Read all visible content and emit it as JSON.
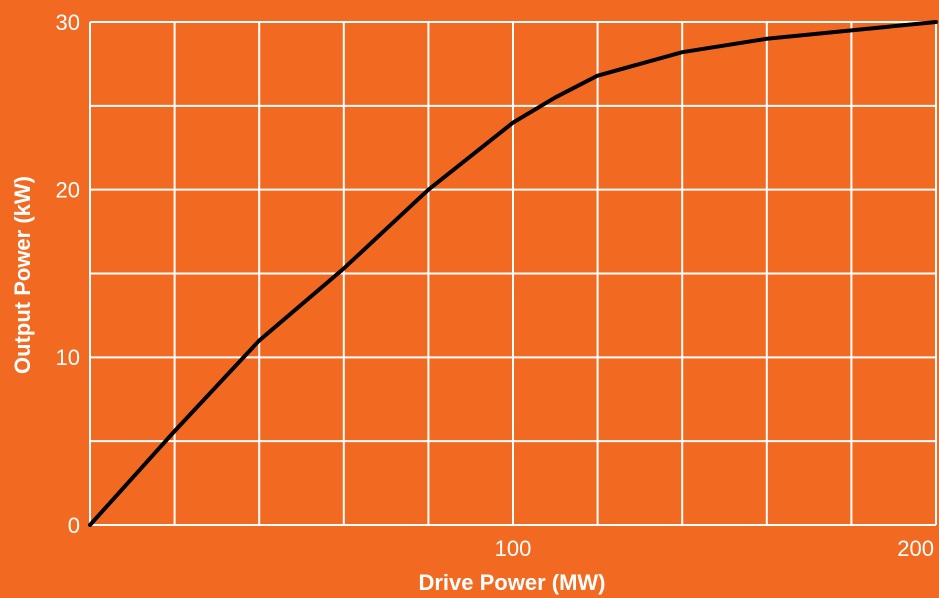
{
  "chart_data": {
    "type": "line",
    "xlabel": "Drive Power (MW)",
    "ylabel": "Output Power (kW)",
    "x": [
      0,
      20,
      40,
      60,
      80,
      100,
      110,
      120,
      140,
      160,
      180,
      200
    ],
    "series": [
      {
        "color": "#000000",
        "values": [
          0,
          5.6,
          11.0,
          15.3,
          20.0,
          24.0,
          25.5,
          26.8,
          28.2,
          29.0,
          29.5,
          30
        ]
      }
    ],
    "xlim": [
      0,
      200
    ],
    "xticks": [
      100,
      200
    ],
    "ylim": [
      0,
      30
    ],
    "yticks": [
      0,
      10,
      20,
      30
    ],
    "x_minor_ticks": [
      0,
      20,
      40,
      60,
      80,
      120,
      140,
      160,
      180
    ],
    "y_minor_ticks": [
      5,
      15,
      25
    ],
    "grid": true,
    "background": "#f26a21",
    "grid_color": "#ffffff"
  }
}
